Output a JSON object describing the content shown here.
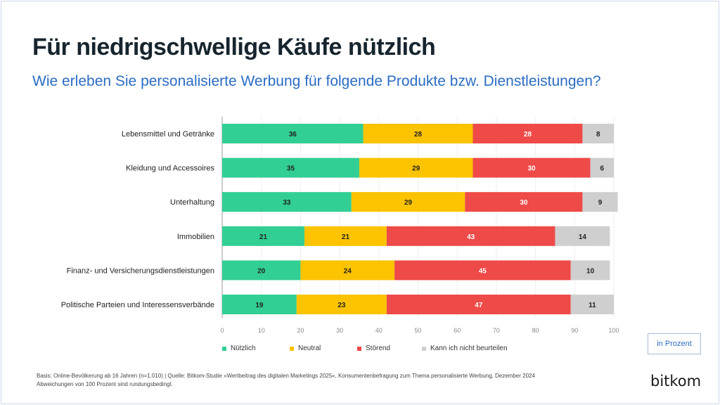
{
  "title": "Für niedrigschwellige Käufe nützlich",
  "subtitle": "Wie erleben Sie personalisierte Werbung für folgende Produkte bzw. Dienstleistungen?",
  "chart_data": {
    "type": "bar",
    "orientation": "horizontal",
    "stacked": true,
    "categories": [
      "Lebensmittel und Getränke",
      "Kleidung und Accessoires",
      "Unterhaltung",
      "Immobilien",
      "Finanz- und Versicherungsdienstleistungen",
      "Politische Parteien und Interessensverbände"
    ],
    "series": [
      {
        "name": "Nützlich",
        "color": "#31cf94",
        "values": [
          36,
          35,
          33,
          21,
          20,
          19
        ]
      },
      {
        "name": "Neutral",
        "color": "#fbc300",
        "values": [
          28,
          29,
          29,
          21,
          24,
          23
        ]
      },
      {
        "name": "Störend",
        "color": "#ee4a48",
        "values": [
          28,
          30,
          30,
          43,
          45,
          47
        ]
      },
      {
        "name": "Kann ich nicht beurteilen",
        "color": "#cfcfcf",
        "values": [
          8,
          6,
          9,
          14,
          10,
          11
        ]
      }
    ],
    "xlim": [
      0,
      100
    ],
    "xticks": [
      0,
      10,
      20,
      30,
      40,
      50,
      60,
      70,
      80,
      90,
      100
    ],
    "grid": true,
    "legend": "bottom",
    "unit_label": "in Prozent"
  },
  "footer": {
    "line1": "Basis: Online-Bevölkerung ab 16 Jahren (n=1.010) | Quelle: Bitkom-Studie »Wertbeitrag des digitalen Marketings 2025«, Konsumentenbefragung zum Thema personalisierte Werbung, Dezember 2024",
    "line2": "Abweichungen von 100 Prozent sind rundungsbedingt."
  },
  "logo": "bitkom"
}
